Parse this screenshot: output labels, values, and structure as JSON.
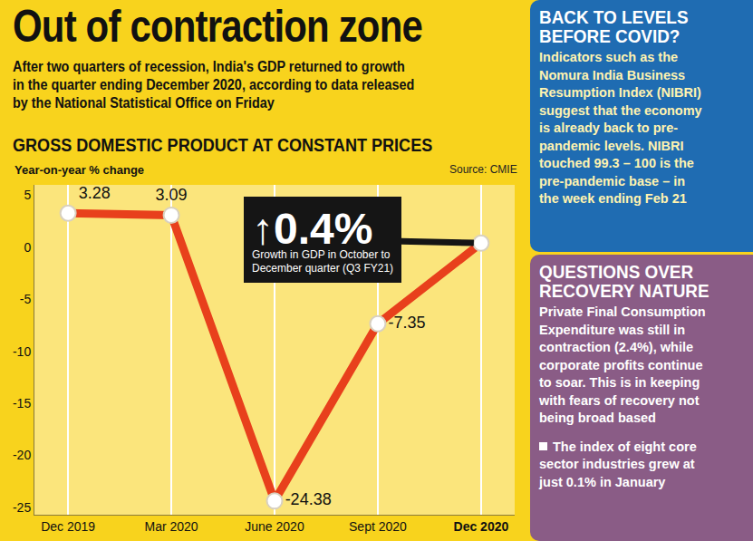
{
  "header": {
    "title": "Out of contraction zone",
    "subtitle": [
      "After two quarters of recession, India's GDP returned to growth",
      "in the quarter ending December 2020, according to data released",
      "by the National Statistical Office on Friday"
    ]
  },
  "chart_data": {
    "type": "line",
    "title": "GROSS DOMESTIC PRODUCT AT CONSTANT PRICES",
    "y_label": "Year-on-year % change",
    "source": "Source: CMIE",
    "categories": [
      "Dec 2019",
      "Mar 2020",
      "June 2020",
      "Sept 2020",
      "Dec 2020"
    ],
    "values": [
      3.28,
      3.09,
      -24.38,
      -7.35,
      0.4
    ],
    "value_labels": [
      "3.28",
      "3.09",
      "-24.38",
      "-7.35",
      null
    ],
    "color": "#e8401c",
    "marker": "circle",
    "ylim": [
      -25.7,
      6
    ],
    "yticks": [
      5,
      0,
      -5,
      -10,
      -15,
      -20,
      -25
    ],
    "grid": true,
    "data_labels": true,
    "callout": {
      "category": "Dec 2020",
      "label": "↑0.4%",
      "text": [
        "Growth in GDP in October to",
        "December quarter (Q3 FY21)"
      ]
    }
  },
  "sidebar": [
    {
      "title": [
        "BACK TO LEVELS",
        "BEFORE COVID?"
      ],
      "body": [
        "Indicators such as the",
        "Nomura India Business",
        "Resumption Index (NIBRI)",
        "suggest that the economy",
        "is already back to pre-",
        "pandemic levels. NIBRI",
        "touched 99.3 – 100 is the",
        "pre-pandemic base – in",
        "the week ending Feb 21"
      ]
    },
    {
      "title": [
        "QUESTIONS OVER",
        "RECOVERY NATURE"
      ],
      "body": [
        "Private Final Consumption",
        "Expenditure was still in",
        "contraction (2.4%), while",
        "corporate profits continue",
        "to soar. This is in keeping",
        "with fears of recovery not",
        "being broad based"
      ],
      "bullet": [
        "The index of eight core",
        "sector industries grew at",
        "just 0.1% in January"
      ]
    }
  ]
}
